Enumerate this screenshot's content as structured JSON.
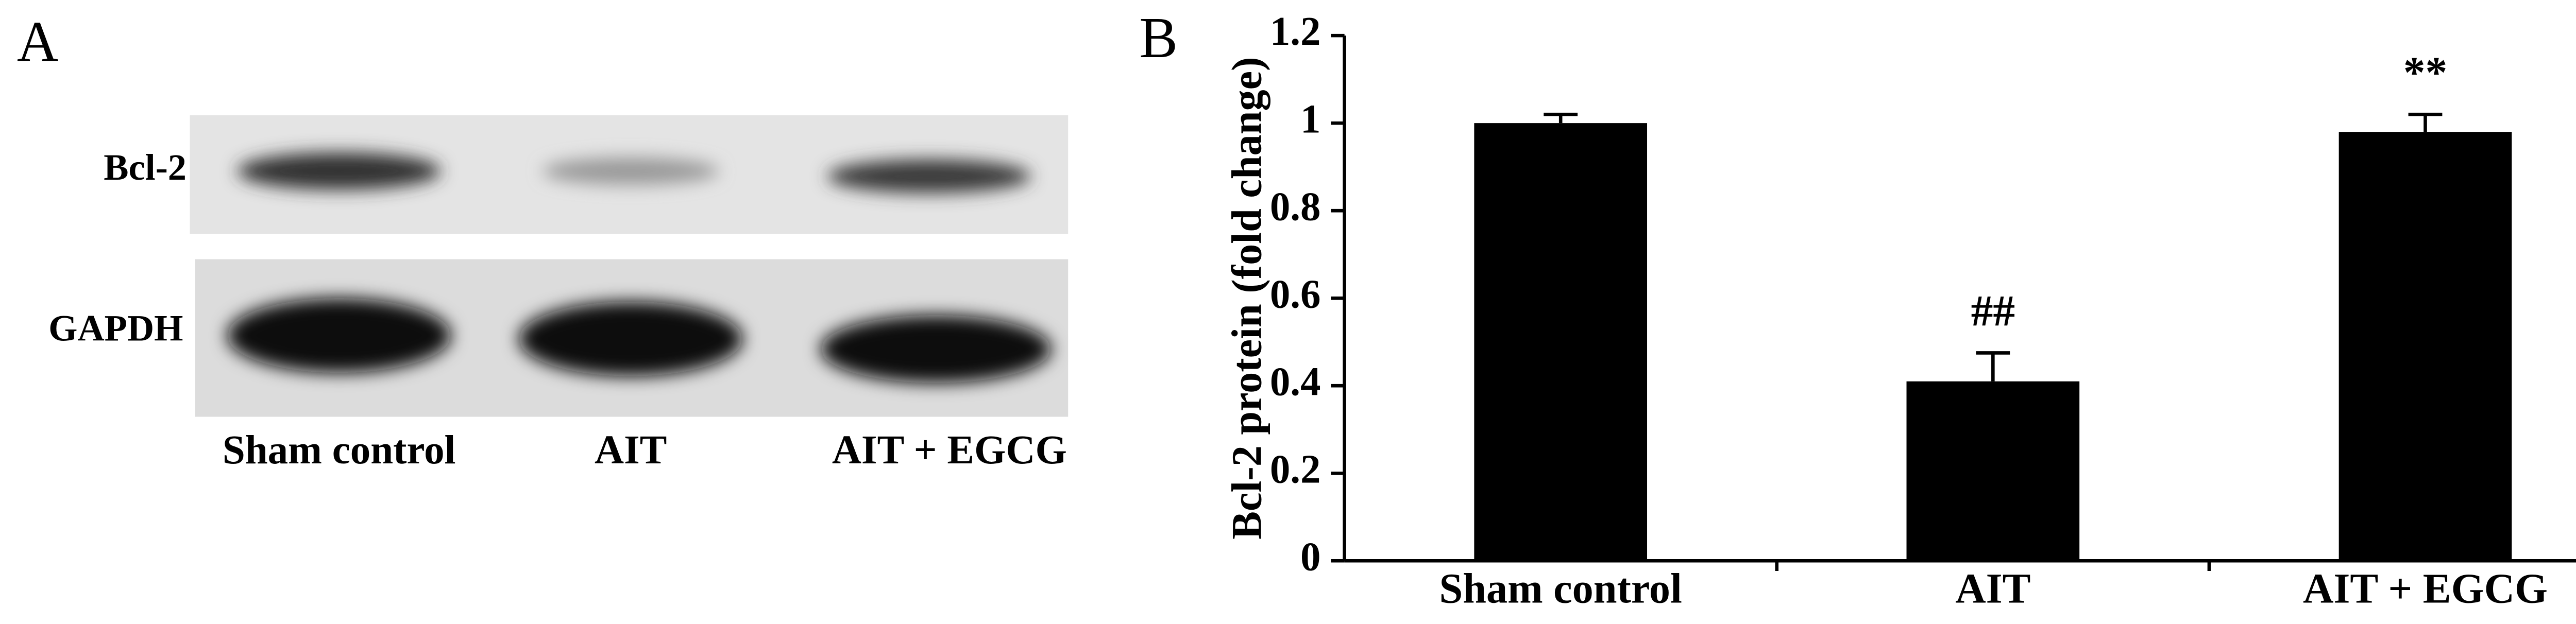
{
  "panel_labels": [
    "A",
    "B"
  ],
  "blot": {
    "rows": [
      "Bcl-2",
      "GAPDH"
    ],
    "lanes": [
      "Sham control",
      "AIT",
      "AIT + EGCG"
    ]
  },
  "chart_data": {
    "type": "bar",
    "y_label": "Bcl-2 protein (fold change)",
    "categories": [
      "Sham control",
      "AIT",
      "AIT + EGCG"
    ],
    "values": [
      1.0,
      0.41,
      0.98
    ],
    "errors": [
      0.02,
      0.065,
      0.04
    ],
    "annotations": [
      "",
      "##",
      "**"
    ],
    "color": "#000000",
    "ylim": [
      0,
      1.2
    ],
    "yticks": [
      0,
      0.2,
      0.4,
      0.6,
      0.8,
      1,
      1.2
    ]
  }
}
